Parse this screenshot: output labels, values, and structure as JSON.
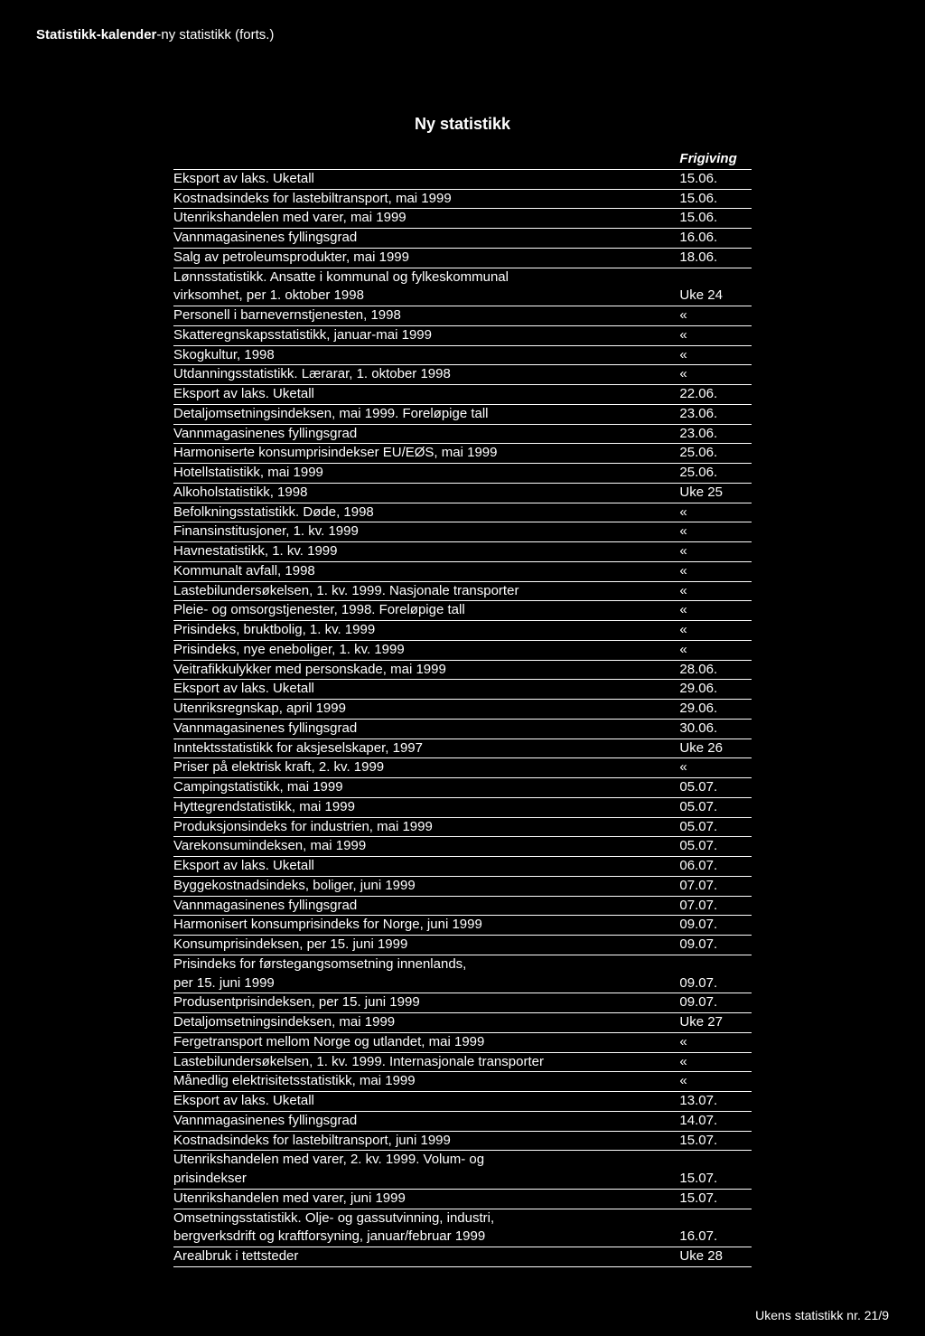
{
  "header": {
    "bold_part": "Statistikk-kalender",
    "rest": "-ny statistikk (forts.)"
  },
  "title": "Ny statistikk",
  "column_header": "Frigiving",
  "footer": "Ukens statistikk nr. 21/9",
  "rows": [
    {
      "name": "Eksport av laks. Uketall",
      "date": "15.06."
    },
    {
      "name": "Kostnadsindeks for lastebiltransport, mai  1999",
      "date": "15.06."
    },
    {
      "name": "Utenrikshandelen med varer, mai 1999",
      "date": "15.06."
    },
    {
      "name": "Vannmagasinenes fyllingsgrad",
      "date": "16.06."
    },
    {
      "name": "Salg av petroleumsprodukter, mai 1999",
      "date": "18.06."
    },
    {
      "name": "Lønnsstatistikk. Ansatte i kommunal og fylkeskommunal",
      "date": "",
      "noborder": true
    },
    {
      "name": "virksomhet, per 1. oktober 1998",
      "date": "Uke 24"
    },
    {
      "name": "Personell i barnevernstjenesten, 1998",
      "date": "«"
    },
    {
      "name": "Skatteregnskapsstatistikk, januar-mai 1999",
      "date": "«"
    },
    {
      "name": "Skogkultur, 1998",
      "date": "«"
    },
    {
      "name": "Utdanningsstatistikk. Lærarar, 1. oktober 1998",
      "date": "«"
    },
    {
      "name": "Eksport av laks. Uketall",
      "date": "22.06."
    },
    {
      "name": "Detaljomsetningsindeksen, mai 1999. Foreløpige tall",
      "date": "23.06."
    },
    {
      "name": "Vannmagasinenes fyllingsgrad",
      "date": "23.06."
    },
    {
      "name": "Harmoniserte konsumprisindekser EU/EØS, mai 1999",
      "date": "25.06."
    },
    {
      "name": "Hotellstatistikk, mai 1999",
      "date": "25.06."
    },
    {
      "name": "Alkoholstatistikk, 1998",
      "date": "Uke 25"
    },
    {
      "name": "Befolkningsstatistikk. Døde, 1998",
      "date": "«"
    },
    {
      "name": "Finansinstitusjoner, 1. kv. 1999",
      "date": "«"
    },
    {
      "name": "Havnestatistikk, 1. kv. 1999",
      "date": "«"
    },
    {
      "name": "Kommunalt avfall, 1998",
      "date": "«"
    },
    {
      "name": "Lastebilundersøkelsen, 1. kv. 1999. Nasjonale transporter",
      "date": "«"
    },
    {
      "name": "Pleie- og omsorgstjenester, 1998. Foreløpige tall",
      "date": "«"
    },
    {
      "name": "Prisindeks, bruktbolig, 1. kv. 1999",
      "date": "«"
    },
    {
      "name": "Prisindeks, nye eneboliger, 1. kv. 1999",
      "date": "«"
    },
    {
      "name": "Veitrafikkulykker med personskade, mai 1999",
      "date": "28.06."
    },
    {
      "name": "Eksport av laks. Uketall",
      "date": "29.06."
    },
    {
      "name": "Utenriksregnskap, april 1999",
      "date": "29.06."
    },
    {
      "name": "Vannmagasinenes fyllingsgrad",
      "date": "30.06."
    },
    {
      "name": "Inntektsstatistikk for aksjeselskaper, 1997",
      "date": "Uke 26"
    },
    {
      "name": "Priser på elektrisk kraft, 2. kv. 1999",
      "date": "«"
    },
    {
      "name": "Campingstatistikk, mai 1999",
      "date": "05.07."
    },
    {
      "name": "Hyttegrendstatistikk, mai 1999",
      "date": "05.07."
    },
    {
      "name": "Produksjonsindeks for industrien, mai 1999",
      "date": "05.07."
    },
    {
      "name": "Varekonsumindeksen, mai 1999",
      "date": "05.07."
    },
    {
      "name": "Eksport av laks. Uketall",
      "date": "06.07."
    },
    {
      "name": "Byggekostnadsindeks, boliger, juni 1999",
      "date": "07.07."
    },
    {
      "name": "Vannmagasinenes fyllingsgrad",
      "date": "07.07."
    },
    {
      "name": "Harmonisert konsumprisindeks for Norge, juni 1999",
      "date": "09.07."
    },
    {
      "name": "Konsumprisindeksen, per 15. juni 1999",
      "date": "09.07."
    },
    {
      "name": "Prisindeks for førstegangsomsetning innenlands,",
      "date": "",
      "noborder": true
    },
    {
      "name": "per 15. juni 1999",
      "date": "09.07."
    },
    {
      "name": "Produsentprisindeksen, per 15. juni 1999",
      "date": "09.07."
    },
    {
      "name": "Detaljomsetningsindeksen, mai 1999",
      "date": "Uke 27"
    },
    {
      "name": "Fergetransport mellom Norge og utlandet, mai 1999",
      "date": "«"
    },
    {
      "name": "Lastebilundersøkelsen, 1. kv. 1999. Internasjonale transporter",
      "date": "«"
    },
    {
      "name": "Månedlig elektrisitetsstatistikk, mai 1999",
      "date": "«"
    },
    {
      "name": "Eksport av laks. Uketall",
      "date": "13.07."
    },
    {
      "name": "Vannmagasinenes fyllingsgrad",
      "date": "14.07."
    },
    {
      "name": "Kostnadsindeks for lastebiltransport, juni  1999",
      "date": "15.07."
    },
    {
      "name": "Utenrikshandelen med varer, 2. kv. 1999. Volum- og",
      "date": "",
      "noborder": true
    },
    {
      "name": "prisindekser",
      "date": "15.07."
    },
    {
      "name": "Utenrikshandelen med varer, juni 1999",
      "date": "15.07."
    },
    {
      "name": "Omsetningsstatistikk. Olje- og gassutvinning, industri,",
      "date": "",
      "noborder": true
    },
    {
      "name": "bergverksdrift og kraftforsyning, januar/februar 1999",
      "date": "16.07."
    },
    {
      "name": "Arealbruk i tettsteder",
      "date": "Uke 28"
    }
  ]
}
